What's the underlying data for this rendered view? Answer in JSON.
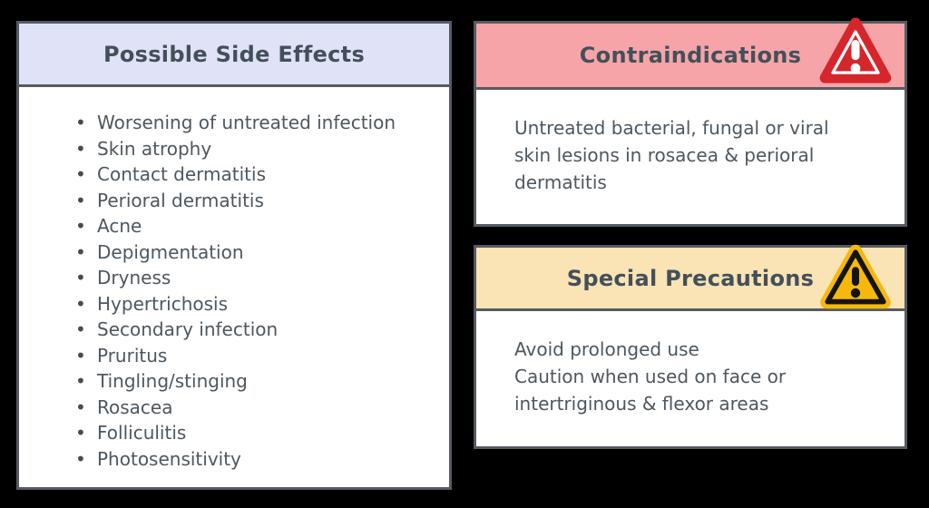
{
  "page": {
    "background": "#000000",
    "panel_bg": "#ffffff",
    "border_color": "#565b61",
    "text_color": "#4d575f",
    "title_color": "#43505a"
  },
  "side_effects_panel": {
    "title": "Possible Side Effects",
    "header_bg": "#e0e3f8",
    "items": [
      "Worsening of untreated infection",
      "Skin atrophy",
      "Contact dermatitis",
      "Perioral dermatitis",
      "Acne",
      "Depigmentation",
      "Dryness",
      "Hypertrichosis",
      "Secondary infection",
      "Pruritus",
      "Tingling/stinging",
      "Rosacea",
      "Folliculitis",
      "Photosensitivity"
    ]
  },
  "contraindications_panel": {
    "title": "Contraindications",
    "header_bg": "#f6a4a8",
    "icon": "red-alert-triangle-icon",
    "icon_colors": {
      "fill": "#d5262c",
      "accent": "#ffffff"
    },
    "body": "Untreated bacterial, fungal or viral skin lesions in rosacea & perioral dermatitis"
  },
  "special_precautions_panel": {
    "title": "Special Precautions",
    "header_bg": "#fae3b4",
    "icon": "yellow-alert-triangle-icon",
    "icon_colors": {
      "fill": "#f6b80d",
      "accent": "#141414"
    },
    "body_lines": [
      "Avoid prolonged use",
      "Caution when used on face or intertriginous & flexor areas"
    ]
  }
}
